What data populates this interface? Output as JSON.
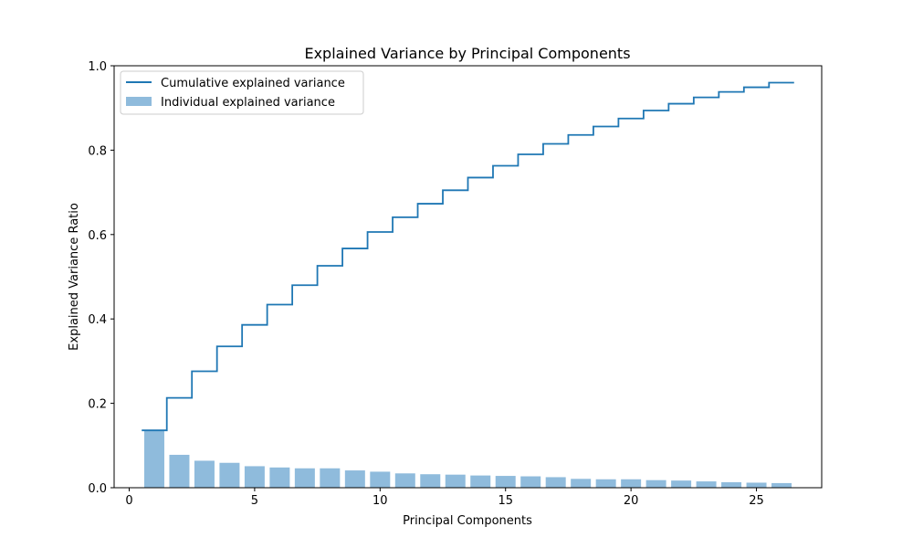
{
  "chart_data": {
    "type": "bar",
    "title": "Explained Variance by Principal Components",
    "xlabel": "Principal Components",
    "ylabel": "Explained Variance Ratio",
    "xlim": [
      -0.6,
      27.6
    ],
    "ylim": [
      0.0,
      1.0
    ],
    "x_ticks": [
      0,
      5,
      10,
      15,
      20,
      25
    ],
    "x_tick_labels": [
      "0",
      "5",
      "10",
      "15",
      "20",
      "25"
    ],
    "y_ticks": [
      0.0,
      0.2,
      0.4,
      0.6,
      0.8,
      1.0
    ],
    "y_tick_labels": [
      "0.0",
      "0.2",
      "0.4",
      "0.6",
      "0.8",
      "1.0"
    ],
    "grid": false,
    "legend": {
      "position": "upper-left",
      "entries": [
        {
          "label": "Cumulative explained variance",
          "kind": "line"
        },
        {
          "label": "Individual explained variance",
          "kind": "bar"
        }
      ]
    },
    "x": [
      1,
      2,
      3,
      4,
      5,
      6,
      7,
      8,
      9,
      10,
      11,
      12,
      13,
      14,
      15,
      16,
      17,
      18,
      19,
      20,
      21,
      22,
      23,
      24,
      25,
      26
    ],
    "series": [
      {
        "name": "Individual explained variance",
        "type": "bar",
        "color": "#8fbbdc",
        "values": [
          0.136,
          0.078,
          0.064,
          0.059,
          0.051,
          0.048,
          0.046,
          0.046,
          0.041,
          0.038,
          0.034,
          0.032,
          0.031,
          0.029,
          0.028,
          0.027,
          0.025,
          0.021,
          0.02,
          0.02,
          0.018,
          0.017,
          0.015,
          0.013,
          0.012,
          0.011
        ]
      },
      {
        "name": "Cumulative explained variance",
        "type": "step",
        "color": "#1f77b4",
        "values": [
          0.136,
          0.213,
          0.276,
          0.335,
          0.386,
          0.434,
          0.48,
          0.526,
          0.567,
          0.606,
          0.641,
          0.673,
          0.705,
          0.735,
          0.763,
          0.79,
          0.815,
          0.836,
          0.856,
          0.875,
          0.894,
          0.91,
          0.925,
          0.938,
          0.949,
          0.96
        ]
      }
    ]
  }
}
